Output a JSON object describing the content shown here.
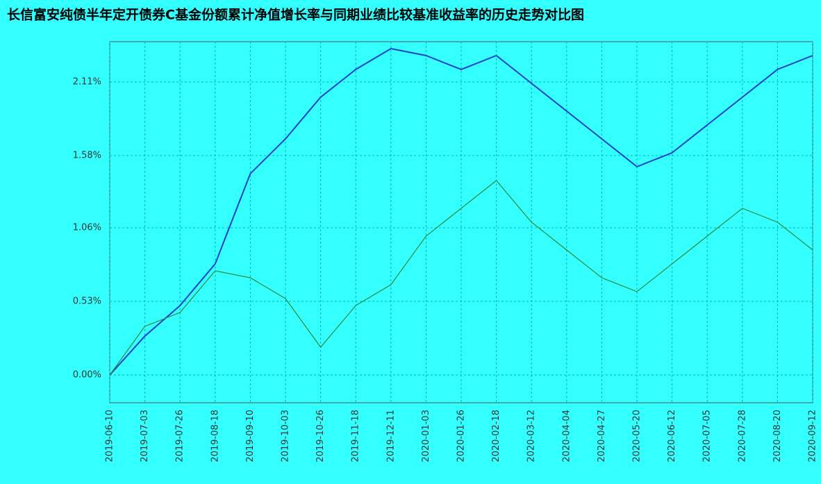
{
  "chart_data": {
    "type": "line",
    "title": "长信富安纯债半年定开债券C基金份额累计净值增长率与同期业绩比较基准收益率的历史走势对比图",
    "categories": [
      "2019-06-10",
      "2019-07-03",
      "2019-07-26",
      "2019-08-18",
      "2019-09-10",
      "2019-10-03",
      "2019-10-26",
      "2019-11-18",
      "2019-12-11",
      "2020-01-03",
      "2020-01-26",
      "2020-02-18",
      "2020-03-12",
      "2020-04-04",
      "2020-04-27",
      "2020-05-20",
      "2020-06-12",
      "2020-07-05",
      "2020-07-28",
      "2020-08-20",
      "2020-09-12"
    ],
    "series": [
      {
        "color": "#1a3fd0",
        "values": [
          0,
          0.28,
          0.5,
          0.8,
          1.45,
          1.7,
          2.0,
          2.2,
          2.35,
          2.3,
          2.2,
          2.3,
          2.1,
          1.9,
          1.7,
          1.5,
          1.6,
          1.8,
          2.0,
          2.2,
          2.3
        ]
      },
      {
        "color": "#2e8b3a",
        "values": [
          0,
          0.35,
          0.45,
          0.75,
          0.7,
          0.55,
          0.2,
          0.5,
          0.65,
          1.0,
          1.2,
          1.4,
          1.1,
          0.9,
          0.7,
          0.6,
          0.8,
          1.0,
          1.2,
          1.1,
          0.9
        ]
      }
    ],
    "ylim": [
      -0.2,
      2.4
    ],
    "yticks": [
      {
        "value": 0,
        "label": "0.00%"
      },
      {
        "value": 0.53,
        "label": "0.53%"
      },
      {
        "value": 1.06,
        "label": "1.06%"
      },
      {
        "value": 1.58,
        "label": "1.58%"
      },
      {
        "value": 2.11,
        "label": "2.11%"
      }
    ],
    "grid": true
  }
}
